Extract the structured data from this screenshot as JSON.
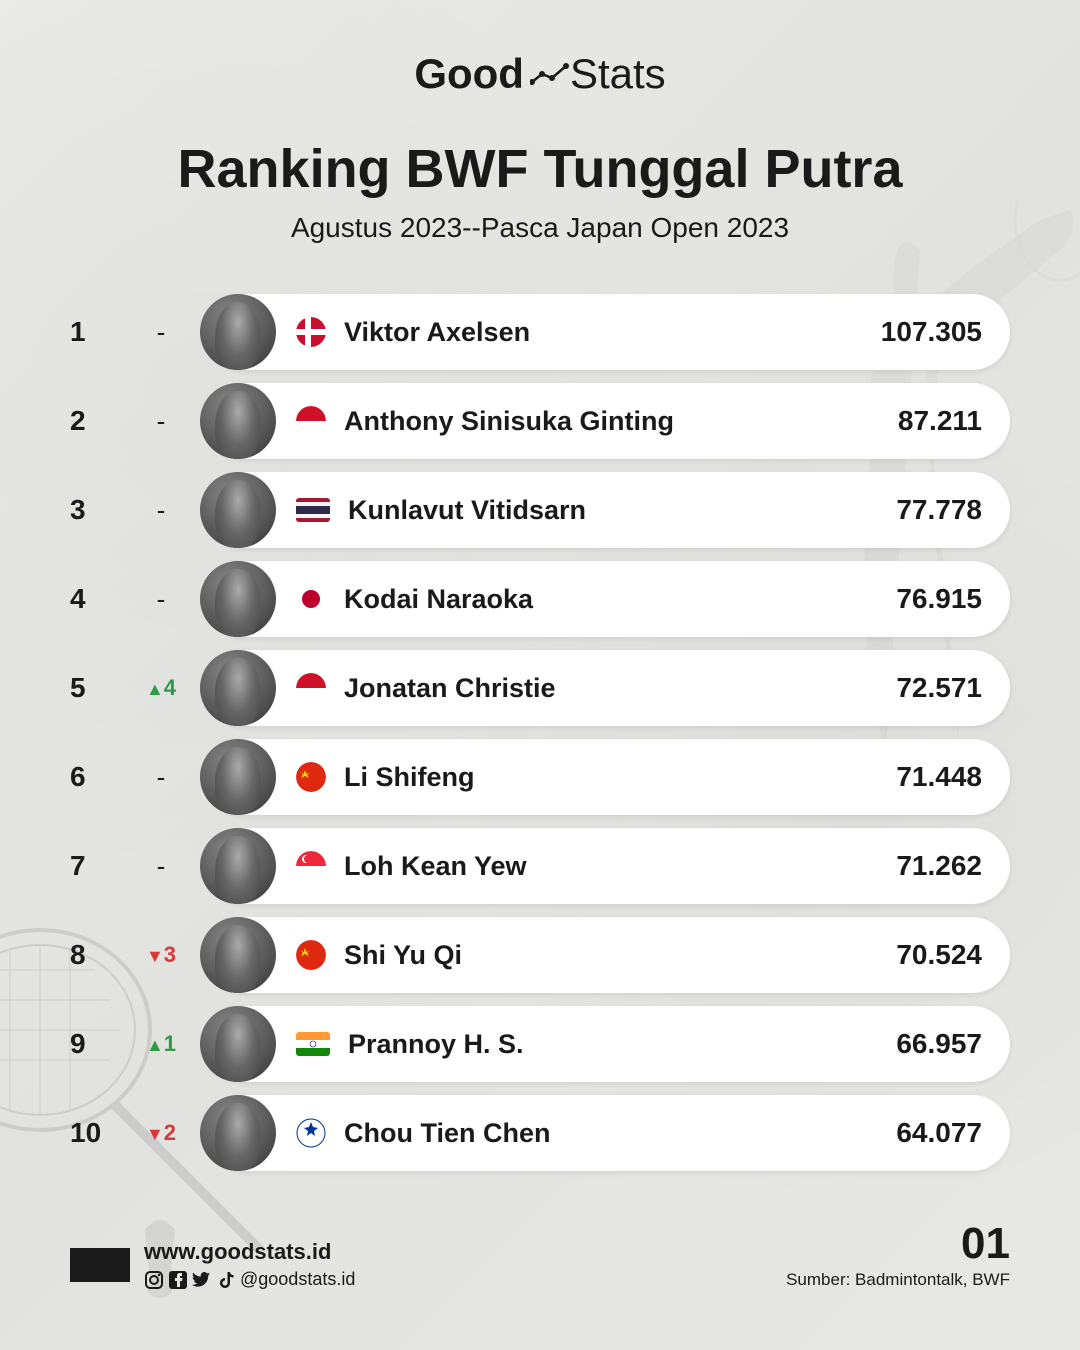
{
  "logo": {
    "bold": "Good",
    "normal": "Stats"
  },
  "title": "Ranking BWF Tunggal Putra",
  "subtitle": "Agustus 2023--Pasca Japan Open 2023",
  "colors": {
    "background": "#e8e8e6",
    "text": "#1a1a1a",
    "pill_bg": "#ffffff",
    "up": "#2e9b4a",
    "down": "#d83838"
  },
  "rankings": [
    {
      "rank": 1,
      "change_dir": "none",
      "change_val": "",
      "name": "Viktor Axelsen",
      "country": "denmark",
      "points": "107.305"
    },
    {
      "rank": 2,
      "change_dir": "none",
      "change_val": "",
      "name": "Anthony Sinisuka Ginting",
      "country": "indonesia",
      "points": "87.211"
    },
    {
      "rank": 3,
      "change_dir": "none",
      "change_val": "",
      "name": "Kunlavut Vitidsarn",
      "country": "thailand",
      "points": "77.778"
    },
    {
      "rank": 4,
      "change_dir": "none",
      "change_val": "",
      "name": "Kodai Naraoka",
      "country": "japan",
      "points": "76.915"
    },
    {
      "rank": 5,
      "change_dir": "up",
      "change_val": "4",
      "name": "Jonatan Christie",
      "country": "indonesia",
      "points": "72.571"
    },
    {
      "rank": 6,
      "change_dir": "none",
      "change_val": "",
      "name": "Li Shifeng",
      "country": "china",
      "points": "71.448"
    },
    {
      "rank": 7,
      "change_dir": "none",
      "change_val": "",
      "name": "Loh Kean Yew",
      "country": "singapore",
      "points": "71.262"
    },
    {
      "rank": 8,
      "change_dir": "down",
      "change_val": "3",
      "name": "Shi Yu Qi",
      "country": "china",
      "points": "70.524"
    },
    {
      "rank": 9,
      "change_dir": "up",
      "change_val": "1",
      "name": "Prannoy H. S.",
      "country": "india",
      "points": "66.957"
    },
    {
      "rank": 10,
      "change_dir": "down",
      "change_val": "2",
      "name": "Chou Tien Chen",
      "country": "taipei",
      "points": "64.077"
    }
  ],
  "footer": {
    "url": "www.goodstats.id",
    "handle": "@goodstats.id",
    "page": "01",
    "source": "Sumber: Badmintontalk, BWF"
  }
}
